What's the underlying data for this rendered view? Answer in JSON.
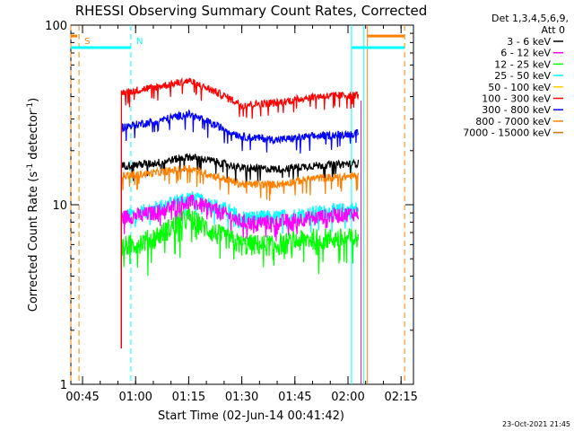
{
  "chart_data": {
    "type": "line",
    "title": "RHESSI Observing Summary Count Rates, Corrected",
    "xlabel": "Start Time (02-Jun-14 00:41:42)",
    "ylabel": "Corrected Count Rate (s",
    "ylabel_sup": "-1",
    "ylabel_mid": " detector",
    "ylabel_end": ")",
    "yscale": "log",
    "ylim": [
      1,
      100
    ],
    "xlim": [
      "00:41:42",
      "02:18:30"
    ],
    "x_ticks": [
      "00:45",
      "01:00",
      "01:15",
      "01:30",
      "01:45",
      "02:00",
      "02:15"
    ],
    "y_ticks": [
      "1",
      "10",
      "100"
    ],
    "legend_header": [
      "Det 1,3,4,5,6,9,",
      "Att 0"
    ],
    "legend_placement": "right",
    "timestamp": "23-Oct-2021 21:45",
    "markers": [
      {
        "label": "S",
        "time": "00:44:00",
        "color": "#ff7f00"
      },
      {
        "label": "N",
        "time": "00:58:40",
        "color": "#00ffff"
      }
    ],
    "series": [
      {
        "name": "3 - 6 keV",
        "color": "#000000",
        "x": [
          "00:56",
          "01:05",
          "01:15",
          "01:22",
          "01:30",
          "01:40",
          "01:50",
          "02:03"
        ],
        "values": [
          16.5,
          17,
          18.5,
          17.5,
          16,
          15.8,
          16.5,
          17
        ]
      },
      {
        "name": "6 - 12 keV",
        "color": "#ff00ff",
        "x": [
          "00:56",
          "01:05",
          "01:15",
          "01:22",
          "01:30",
          "01:40",
          "01:50",
          "02:03"
        ],
        "values": [
          8.5,
          9,
          10.5,
          9.5,
          8,
          8,
          8.5,
          9
        ]
      },
      {
        "name": "12 - 25 keV",
        "color": "#00ff00",
        "x": [
          "00:56",
          "01:05",
          "01:15",
          "01:22",
          "01:30",
          "01:40",
          "01:50",
          "02:03"
        ],
        "values": [
          5.8,
          6.5,
          8.5,
          7,
          6,
          6,
          6.5,
          6.5
        ]
      },
      {
        "name": "25 - 50 keV",
        "color": "#00ffff",
        "x": [
          "00:56",
          "01:05",
          "01:15",
          "01:22",
          "01:30",
          "01:40",
          "01:50",
          "02:03"
        ],
        "values": [
          8.5,
          9.5,
          11,
          10,
          8.5,
          8.5,
          9,
          9.5
        ]
      },
      {
        "name": "50 - 100 keV",
        "color": "#ffcc00",
        "x": [],
        "values": []
      },
      {
        "name": "100 - 300 keV",
        "color": "#ff0000",
        "x": [
          "00:56",
          "01:05",
          "01:15",
          "01:22",
          "01:30",
          "01:40",
          "01:50",
          "02:03"
        ],
        "values": [
          42,
          45,
          49,
          43,
          36,
          37,
          40,
          41
        ]
      },
      {
        "name": "300 - 800 keV",
        "color": "#0000ff",
        "x": [
          "00:56",
          "01:05",
          "01:15",
          "01:22",
          "01:30",
          "01:40",
          "01:50",
          "02:03"
        ],
        "values": [
          27,
          29,
          32,
          28,
          24,
          23,
          24,
          25
        ]
      },
      {
        "name": "800 - 7000 keV",
        "color": "#ff7f00",
        "x": [
          "00:56",
          "01:05",
          "01:15",
          "01:22",
          "01:30",
          "01:40",
          "01:50",
          "02:03"
        ],
        "values": [
          14.5,
          15,
          16,
          14.5,
          13,
          13,
          14,
          14.5
        ]
      },
      {
        "name": "7000 - 15000 keV",
        "color": "#c47a00",
        "x": [],
        "values": []
      }
    ],
    "segments": [
      {
        "color": "#00ffff",
        "time": [
          "00:41:42",
          "00:58:40"
        ],
        "y": 75
      },
      {
        "color": "#ff7f00",
        "time": [
          "00:41:42",
          "00:43:30"
        ],
        "y": 87
      },
      {
        "color": "#00ffff",
        "time": [
          "02:01:00",
          "02:16:00"
        ],
        "y": 75
      },
      {
        "color": "#ff7f00",
        "time": [
          "02:05:30",
          "02:16:00"
        ],
        "y": 87
      }
    ]
  }
}
